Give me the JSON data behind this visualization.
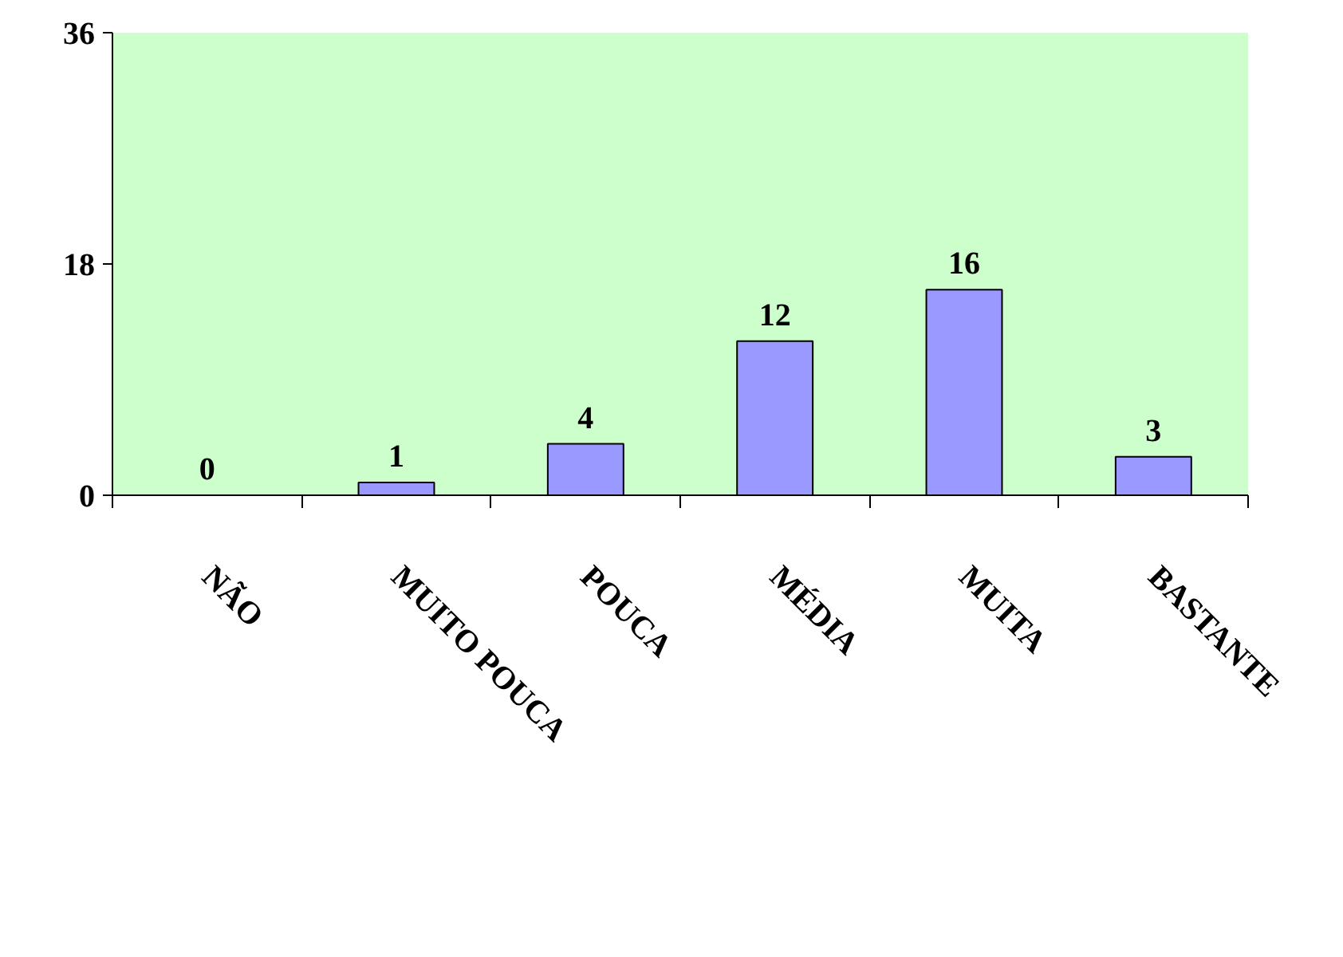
{
  "chart_data": {
    "type": "bar",
    "categories": [
      "NÃO",
      "MUITO POUCA",
      "POUCA",
      "MÉDIA",
      "MUITA",
      "BASTANTE"
    ],
    "values": [
      0,
      1,
      4,
      12,
      16,
      3
    ],
    "color": "#9999ff",
    "ylim": [
      0,
      36
    ],
    "yticks": [
      0,
      18,
      36
    ],
    "data_labels": true
  }
}
